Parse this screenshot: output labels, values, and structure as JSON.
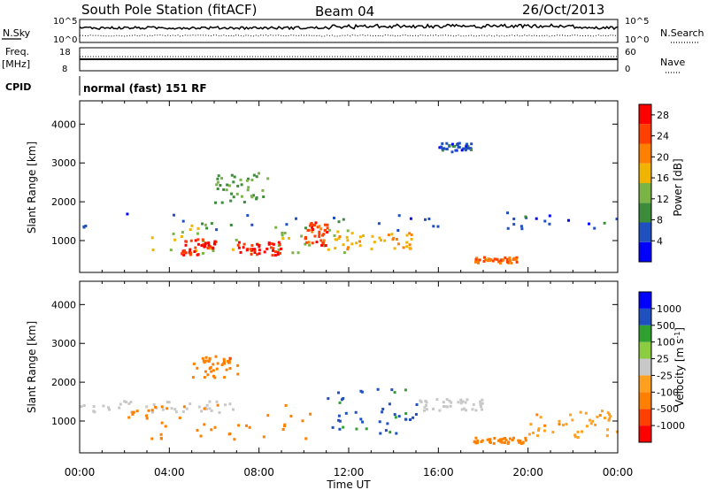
{
  "header": {
    "station": "South Pole Station (fitACF)",
    "beam": "Beam 04",
    "date": "26/Oct/2013"
  },
  "strip_labels": {
    "nsky": "N.Sky",
    "nsearch": "N.Search",
    "freq_top": "Freq.",
    "freq_unit": "[MHz]",
    "nave": "Nave",
    "cpid": "CPID",
    "cpid_value": "normal (fast) 151 RF",
    "noise_ticks_left": [
      "10^5",
      "10^0"
    ],
    "noise_ticks_right": [
      "10^5",
      "10^0"
    ],
    "freq_ticks_left": [
      "18",
      "8"
    ],
    "freq_ticks_right": [
      "60",
      "0"
    ]
  },
  "colors": {
    "power_scale": [
      "#0000ff",
      "#2050c0",
      "#3c8c3c",
      "#7ab446",
      "#f0b400",
      "#ff8000",
      "#ff4000",
      "#ff0000"
    ],
    "velocity_scale": [
      "#ff0000",
      "#ff4000",
      "#ff8000",
      "#ffa020",
      "#c8c8c8",
      "#8ccc40",
      "#30a030",
      "#2050c0",
      "#0000ff"
    ]
  },
  "chart_data": [
    {
      "type": "heatmap",
      "ylabel": "Slant Range [km]",
      "xlabel": "Time UT",
      "x_ticks": [
        "00:00",
        "04:00",
        "08:00",
        "12:00",
        "16:00",
        "20:00",
        "00:00"
      ],
      "xlim_hours": [
        0,
        24
      ],
      "ylim": [
        180,
        4600
      ],
      "y_ticks": [
        1000,
        2000,
        3000,
        4000
      ],
      "colorbar": {
        "label": "Power [dB]",
        "ticks": [
          4,
          8,
          12,
          16,
          20,
          24,
          28
        ],
        "range": [
          0,
          30
        ]
      },
      "regions": [
        {
          "t0": 0.0,
          "t1": 24.0,
          "r0": 1250,
          "r1": 1750,
          "value": 6
        },
        {
          "t0": 2.0,
          "t1": 12.0,
          "r0": 700,
          "r1": 1450,
          "value": 14
        },
        {
          "t0": 4.5,
          "t1": 6.0,
          "r0": 650,
          "r1": 1100,
          "value": 27
        },
        {
          "t0": 7.0,
          "t1": 9.0,
          "r0": 650,
          "r1": 1000,
          "value": 27
        },
        {
          "t0": 10.0,
          "t1": 11.0,
          "r0": 900,
          "r1": 1500,
          "value": 24
        },
        {
          "t0": 11.0,
          "t1": 15.0,
          "r0": 800,
          "r1": 1300,
          "value": 18
        },
        {
          "t0": 6.0,
          "t1": 8.5,
          "r0": 2000,
          "r1": 2800,
          "value": 11
        },
        {
          "t0": 17.5,
          "t1": 19.5,
          "r0": 450,
          "r1": 600,
          "value": 22
        },
        {
          "t0": 16.0,
          "t1": 17.5,
          "r0": 3300,
          "r1": 3550,
          "value": 6
        }
      ]
    },
    {
      "type": "heatmap",
      "ylabel": "Slant Range [km]",
      "xlabel": "Time UT",
      "x_ticks": [
        "00:00",
        "04:00",
        "08:00",
        "12:00",
        "16:00",
        "20:00",
        "00:00"
      ],
      "xlim_hours": [
        0,
        24
      ],
      "ylim": [
        180,
        4600
      ],
      "y_ticks": [
        1000,
        2000,
        3000,
        4000
      ],
      "colorbar": {
        "label": "Velocity [m s^-1]",
        "ticks": [
          "-1000",
          "-500",
          "-100",
          "-25",
          "25",
          "100",
          "500",
          "1000"
        ]
      },
      "regions": [
        {
          "t0": 0.0,
          "t1": 7.0,
          "r0": 1250,
          "r1": 1550,
          "value": 0
        },
        {
          "t0": 2.0,
          "t1": 10.5,
          "r0": 550,
          "r1": 1450,
          "value": -300
        },
        {
          "t0": 5.0,
          "t1": 7.0,
          "r0": 2150,
          "r1": 2700,
          "value": -400
        },
        {
          "t0": 11.0,
          "t1": 15.0,
          "r0": 700,
          "r1": 1900,
          "value": 600
        },
        {
          "t0": 15.0,
          "t1": 18.0,
          "r0": 1300,
          "r1": 1600,
          "value": 0
        },
        {
          "t0": 17.5,
          "t1": 20.0,
          "r0": 450,
          "r1": 600,
          "value": -200
        },
        {
          "t0": 20.0,
          "t1": 24.0,
          "r0": 600,
          "r1": 1300,
          "value": -80
        }
      ]
    }
  ]
}
